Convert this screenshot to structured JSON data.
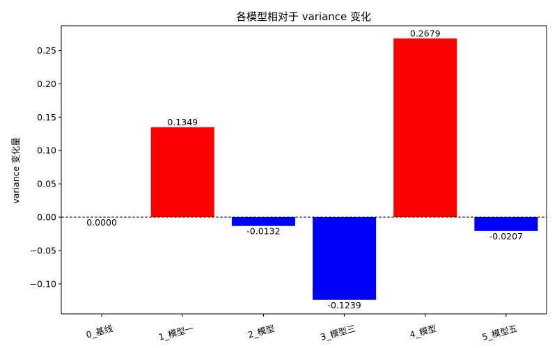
{
  "colors": {
    "positive": "#ff0000",
    "negative": "#0000ff",
    "axis": "#000000",
    "zero_line": "#000000"
  },
  "chart_data": {
    "type": "bar",
    "title": "各模型相对于 variance 变化",
    "xlabel": "",
    "ylabel": "variance 变化量",
    "categories": [
      "0_基线",
      "1_模型一",
      "2_模型",
      "3_模型三",
      "4_模型",
      "5_模型五"
    ],
    "values": [
      0.0,
      0.1349,
      -0.0132,
      -0.1239,
      0.2679,
      -0.0207
    ],
    "data_labels": [
      "0.0000",
      "0.1349",
      "-0.0132",
      "-0.1239",
      "0.2679",
      "-0.0207"
    ],
    "ylim": [
      -0.145,
      0.287
    ],
    "yticks": [
      -0.1,
      -0.05,
      0.0,
      0.05,
      0.1,
      0.15,
      0.2,
      0.25
    ],
    "ytick_labels": [
      "−0.10",
      "−0.05",
      "0.00",
      "0.05",
      "0.10",
      "0.15",
      "0.20",
      "0.25"
    ],
    "zero_line": true,
    "grid": false,
    "legend": "none",
    "xtick_rotation_deg": 15
  }
}
